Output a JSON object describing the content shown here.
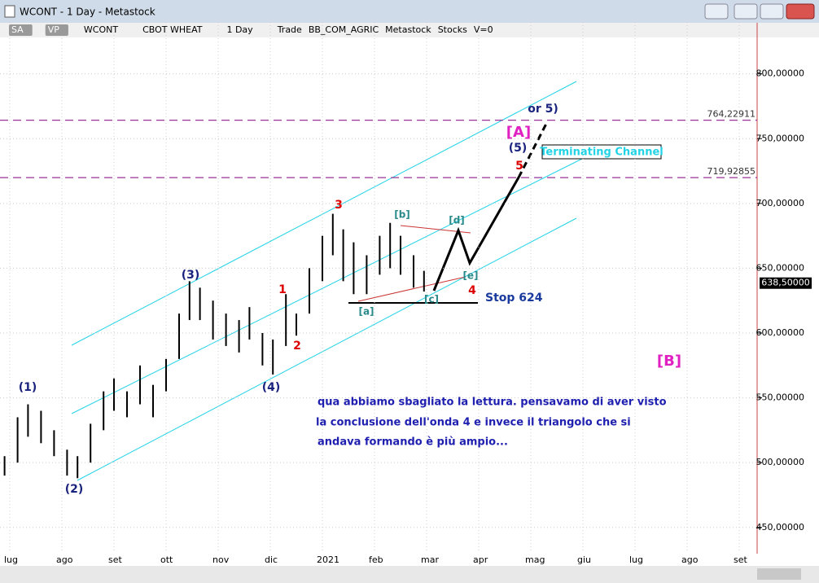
{
  "window": {
    "title": "WCONT - 1 Day - Metastock"
  },
  "toolbar": {
    "items": [
      "SA",
      "VP",
      "WCONT",
      "CBOT WHEAT",
      "1 Day",
      "Trade",
      "BB_COM_AGRIC",
      "Metastock",
      "Stocks",
      "V=0"
    ]
  },
  "chart_data": {
    "type": "ohlc",
    "categories": [
      "lug",
      "ago",
      "set",
      "ott",
      "nov",
      "dic",
      "2021",
      "feb",
      "mar",
      "apr",
      "mag",
      "giu",
      "lug",
      "ago",
      "set"
    ],
    "bars": {
      "x": [
        -0.1,
        0.15,
        0.35,
        0.6,
        0.85,
        1.1,
        1.3,
        1.55,
        1.8,
        2.0,
        2.25,
        2.5,
        2.75,
        3.0,
        3.25,
        3.45,
        3.65,
        3.9,
        4.15,
        4.4,
        4.6,
        4.85,
        5.05,
        5.3,
        5.5,
        5.75,
        6.0,
        6.2,
        6.4,
        6.6,
        6.85,
        7.1,
        7.3,
        7.5,
        7.75,
        7.95
      ],
      "high": [
        505,
        535,
        545,
        540,
        525,
        510,
        505,
        530,
        555,
        565,
        555,
        575,
        560,
        580,
        615,
        640,
        635,
        625,
        615,
        610,
        620,
        600,
        595,
        630,
        615,
        650,
        675,
        692,
        680,
        670,
        660,
        675,
        685,
        675,
        660,
        648
      ],
      "low": [
        490,
        500,
        520,
        515,
        505,
        490,
        488,
        500,
        525,
        540,
        535,
        545,
        535,
        555,
        580,
        610,
        610,
        595,
        590,
        585,
        595,
        575,
        568,
        590,
        598,
        615,
        640,
        660,
        640,
        630,
        630,
        645,
        650,
        645,
        635,
        632
      ],
      "color": "#000000"
    },
    "ylim": [
      431,
      840
    ],
    "yticks": [
      {
        "value": 450,
        "label": "450,00000"
      },
      {
        "value": 500,
        "label": "500,00000"
      },
      {
        "value": 550,
        "label": "550,00000"
      },
      {
        "value": 600,
        "label": "600,00000"
      },
      {
        "value": 650,
        "label": "650,00000"
      },
      {
        "value": 700,
        "label": "700,00000"
      },
      {
        "value": 750,
        "label": "750,00000"
      },
      {
        "value": 800,
        "label": "800,00000"
      }
    ],
    "grid": true,
    "levels": [
      {
        "value": 764.22911,
        "label": "764,22911"
      },
      {
        "value": 719.92855,
        "label": "719,92855"
      }
    ],
    "level_color": "#993399",
    "last_price": {
      "value": 638.5,
      "label": "638,50000"
    },
    "annotations": [
      "(1)",
      "(2)",
      "(3)",
      "(4)",
      "(5)",
      "1",
      "2",
      "3",
      "4",
      "5",
      "[a]",
      "[b]",
      "[c]",
      "[d]",
      "[e]",
      "[A]",
      "[B]",
      "or 5)",
      "Terminating Channel",
      "Stop 624",
      "qua abbiamo sbagliato la lettura. pensavamo di aver visto",
      "la conclusione dell'onda 4 e invece il triangolo che si",
      "andava formando è più ampio..."
    ]
  }
}
